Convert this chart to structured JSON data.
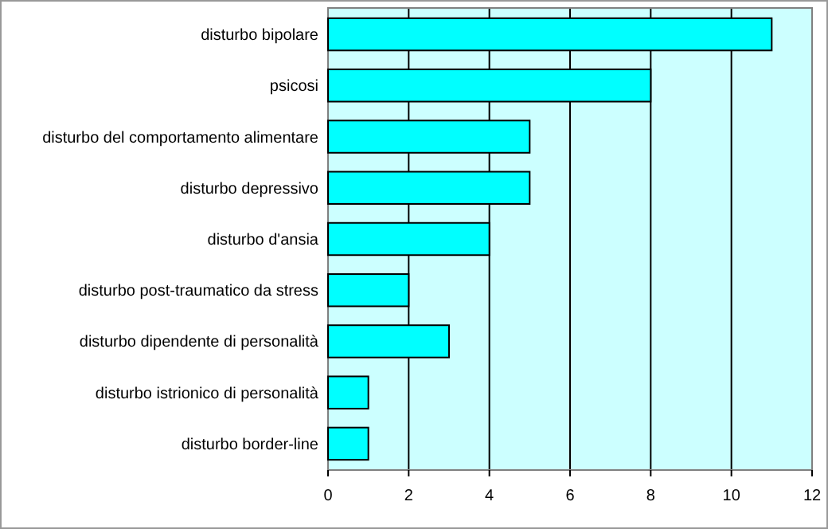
{
  "chart_data": {
    "type": "bar",
    "orientation": "horizontal",
    "categories": [
      "disturbo bipolare",
      "psicosi",
      "disturbo del comportamento alimentare",
      "disturbo depressivo",
      "disturbo d'ansia",
      "disturbo post-traumatico da stress",
      "disturbo dipendente di personalità",
      "disturbo istrionico di personalità",
      "disturbo border-line"
    ],
    "values": [
      11,
      8,
      5,
      5,
      4,
      2,
      3,
      1,
      1
    ],
    "color": "#00ffff",
    "xlim": [
      0,
      12
    ],
    "xticks": [
      0,
      2,
      4,
      6,
      8,
      10,
      12
    ],
    "grid": "x"
  }
}
